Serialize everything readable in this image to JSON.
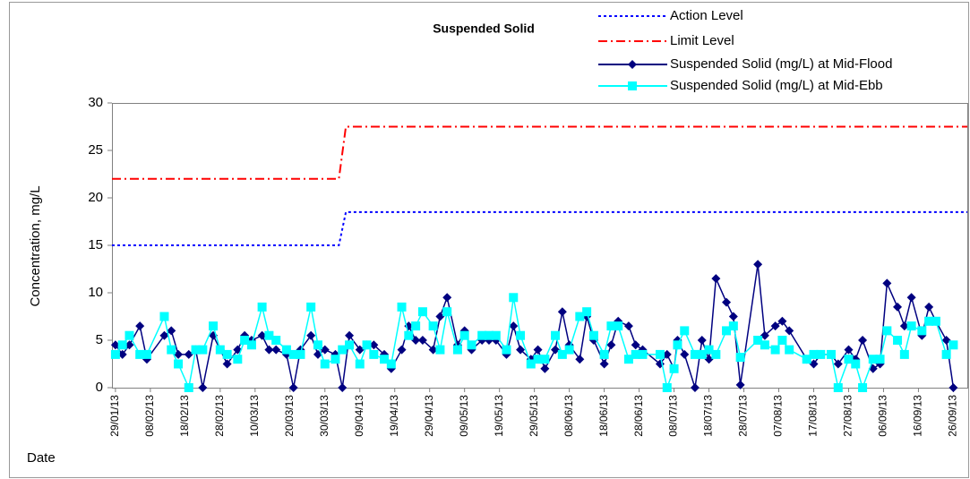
{
  "chart_data": {
    "type": "line",
    "title": "Suspended Solid",
    "x_label": "Date",
    "y_label": "Concentration, mg/L",
    "ylim": [
      0,
      30
    ],
    "yticks": [
      0,
      5,
      10,
      15,
      20,
      25,
      30
    ],
    "xlim": [
      "28/01/13",
      "30/09/13"
    ],
    "xticks": [
      "29/01/13",
      "08/02/13",
      "18/02/13",
      "28/02/13",
      "10/03/13",
      "20/03/13",
      "30/03/13",
      "09/04/13",
      "19/04/13",
      "29/04/13",
      "09/05/13",
      "19/05/13",
      "29/05/13",
      "08/06/13",
      "18/06/13",
      "28/06/13",
      "08/07/13",
      "18/07/13",
      "28/07/13",
      "07/08/13",
      "17/08/13",
      "27/08/13",
      "06/09/13",
      "16/09/13",
      "26/09/13"
    ],
    "legend": "top-right",
    "series": [
      {
        "name": "Action Level",
        "color": "#0000FF",
        "style": "dotted",
        "marker": "none",
        "x": [
          "28/01/13",
          "03/04/13",
          "05/04/13",
          "30/09/13"
        ],
        "values": [
          15,
          15,
          18.5,
          18.5
        ]
      },
      {
        "name": "Limit Level",
        "color": "#FF0000",
        "style": "dashdot",
        "marker": "none",
        "x": [
          "28/01/13",
          "03/04/13",
          "05/04/13",
          "30/09/13"
        ],
        "values": [
          22,
          22,
          27.5,
          27.5
        ]
      },
      {
        "name": "Suspended Solid (mg/L) at Mid-Flood",
        "color": "#000080",
        "style": "solid",
        "marker": "diamond",
        "x": [
          "29/01/13",
          "31/01/13",
          "02/02/13",
          "05/02/13",
          "07/02/13",
          "12/02/13",
          "14/02/13",
          "16/02/13",
          "19/02/13",
          "21/02/13",
          "23/02/13",
          "26/02/13",
          "28/02/13",
          "02/03/13",
          "05/03/13",
          "07/03/13",
          "09/03/13",
          "12/03/13",
          "14/03/13",
          "16/03/13",
          "19/03/13",
          "21/03/13",
          "23/03/13",
          "26/03/13",
          "28/03/13",
          "30/03/13",
          "02/04/13",
          "04/04/13",
          "06/04/13",
          "09/04/13",
          "11/04/13",
          "13/04/13",
          "16/04/13",
          "18/04/13",
          "21/04/13",
          "23/04/13",
          "25/04/13",
          "27/04/13",
          "30/04/13",
          "02/05/13",
          "04/05/13",
          "07/05/13",
          "09/05/13",
          "11/05/13",
          "14/05/13",
          "16/05/13",
          "18/05/13",
          "21/05/13",
          "23/05/13",
          "25/05/13",
          "28/05/13",
          "30/05/13",
          "01/06/13",
          "04/06/13",
          "06/06/13",
          "08/06/13",
          "11/06/13",
          "13/06/13",
          "15/06/13",
          "18/06/13",
          "20/06/13",
          "22/06/13",
          "25/06/13",
          "27/06/13",
          "29/06/13",
          "04/07/13",
          "06/07/13",
          "08/07/13",
          "09/07/13",
          "11/07/13",
          "14/07/13",
          "16/07/13",
          "18/07/13",
          "20/07/13",
          "23/07/13",
          "25/07/13",
          "27/07/13",
          "01/08/13",
          "03/08/13",
          "06/08/13",
          "08/08/13",
          "10/08/13",
          "15/08/13",
          "17/08/13",
          "19/08/13",
          "22/08/13",
          "24/08/13",
          "27/08/13",
          "29/08/13",
          "31/08/13",
          "03/09/13",
          "05/09/13",
          "07/09/13",
          "10/09/13",
          "12/09/13",
          "14/09/13",
          "17/09/13",
          "19/09/13",
          "21/09/13",
          "24/09/13",
          "26/09/13"
        ],
        "values": [
          4.5,
          3.5,
          4.5,
          6.5,
          3,
          5.5,
          6,
          3.5,
          3.5,
          4,
          0,
          5.5,
          4,
          2.5,
          4,
          5.5,
          5,
          5.5,
          4,
          4,
          3.5,
          0,
          4,
          5.5,
          3.5,
          4,
          3.5,
          0,
          5.5,
          4,
          4.5,
          4.5,
          3.5,
          2,
          4,
          6.5,
          5,
          5,
          4,
          7.5,
          9.5,
          4.5,
          6,
          4,
          5,
          5,
          5,
          3.5,
          6.5,
          4,
          3,
          4,
          2,
          4,
          8,
          4.5,
          3,
          7.5,
          5,
          2.5,
          4.5,
          7,
          6.5,
          4.5,
          4,
          2.5,
          3.5,
          2,
          5,
          3.5,
          0,
          5,
          3,
          11.5,
          9,
          7.5,
          0.3,
          13,
          5.5,
          6.5,
          7,
          6,
          3,
          2.5,
          3.5,
          3.5,
          2.5,
          4,
          3,
          5,
          2,
          2.5,
          11,
          8.5,
          6.5,
          9.5,
          5.5,
          8.5,
          7,
          5,
          0
        ]
      },
      {
        "name": "Suspended Solid (mg/L) at Mid-Ebb",
        "color": "#00FFFF",
        "style": "solid",
        "marker": "square",
        "x": [
          "29/01/13",
          "31/01/13",
          "02/02/13",
          "05/02/13",
          "07/02/13",
          "12/02/13",
          "14/02/13",
          "16/02/13",
          "19/02/13",
          "21/02/13",
          "23/02/13",
          "26/02/13",
          "28/02/13",
          "02/03/13",
          "05/03/13",
          "07/03/13",
          "09/03/13",
          "12/03/13",
          "14/03/13",
          "16/03/13",
          "19/03/13",
          "21/03/13",
          "23/03/13",
          "26/03/13",
          "28/03/13",
          "30/03/13",
          "02/04/13",
          "04/04/13",
          "06/04/13",
          "09/04/13",
          "11/04/13",
          "13/04/13",
          "16/04/13",
          "18/04/13",
          "21/04/13",
          "23/04/13",
          "25/04/13",
          "27/04/13",
          "30/04/13",
          "02/05/13",
          "04/05/13",
          "07/05/13",
          "09/05/13",
          "11/05/13",
          "14/05/13",
          "16/05/13",
          "18/05/13",
          "21/05/13",
          "23/05/13",
          "25/05/13",
          "28/05/13",
          "30/05/13",
          "01/06/13",
          "04/06/13",
          "06/06/13",
          "08/06/13",
          "11/06/13",
          "13/06/13",
          "15/06/13",
          "18/06/13",
          "20/06/13",
          "22/06/13",
          "25/06/13",
          "27/06/13",
          "29/06/13",
          "04/07/13",
          "06/07/13",
          "08/07/13",
          "09/07/13",
          "11/07/13",
          "14/07/13",
          "16/07/13",
          "18/07/13",
          "20/07/13",
          "23/07/13",
          "25/07/13",
          "27/07/13",
          "01/08/13",
          "03/08/13",
          "06/08/13",
          "08/08/13",
          "10/08/13",
          "15/08/13",
          "17/08/13",
          "19/08/13",
          "22/08/13",
          "24/08/13",
          "27/08/13",
          "29/08/13",
          "31/08/13",
          "03/09/13",
          "05/09/13",
          "07/09/13",
          "10/09/13",
          "12/09/13",
          "14/09/13",
          "17/09/13",
          "19/09/13",
          "21/09/13",
          "24/09/13",
          "26/09/13"
        ],
        "values": [
          3.5,
          4.5,
          5.5,
          3.5,
          3.5,
          7.5,
          4,
          2.5,
          0,
          4,
          4,
          6.5,
          4,
          3.5,
          3,
          5,
          4.5,
          8.5,
          5.5,
          5,
          4,
          3.5,
          3.5,
          8.5,
          4.5,
          2.5,
          3,
          4,
          4.5,
          2.5,
          4.5,
          3.5,
          3,
          2.5,
          8.5,
          5.5,
          6.5,
          8,
          6.5,
          4,
          8,
          4,
          5.5,
          4.5,
          5.5,
          5.5,
          5.5,
          4,
          9.5,
          5.5,
          2.5,
          3,
          3,
          5.5,
          3.5,
          4,
          7.5,
          8,
          5.5,
          3.5,
          6.5,
          6.5,
          3,
          3.5,
          3.5,
          3.5,
          0,
          2,
          4.5,
          6,
          3.5,
          3.5,
          4,
          3.5,
          6,
          6.5,
          3.2,
          5,
          4.5,
          4,
          5,
          4,
          3,
          3.5,
          3.5,
          3.5,
          0,
          3,
          2.5,
          0,
          3,
          3,
          6,
          5,
          3.5,
          6.5,
          6,
          7,
          7,
          3.5,
          4.5
        ]
      }
    ]
  }
}
